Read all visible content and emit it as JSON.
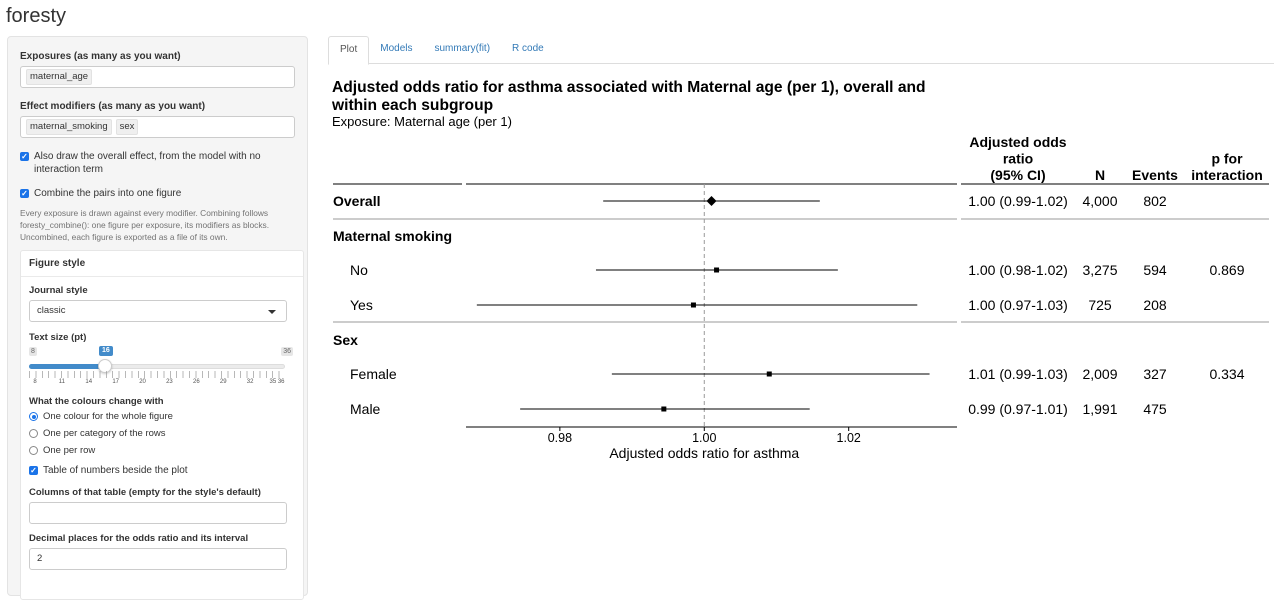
{
  "app_title": "foresty",
  "sidebar": {
    "exposures_label": "Exposures (as many as you want)",
    "exposures": [
      "maternal_age"
    ],
    "modifiers_label": "Effect modifiers (as many as you want)",
    "modifiers": [
      "maternal_smoking",
      "sex"
    ],
    "overall_checkbox": "Also draw the overall effect, from the model with no interaction term",
    "combine_checkbox": "Combine the pairs into one figure",
    "help_text": "Every exposure is drawn against every modifier. Combining follows foresty_combine(): one figure per exposure, its modifiers as blocks. Uncombined, each figure is exported as a file of its own.",
    "figure_style": {
      "heading": "Figure style",
      "journal_label": "Journal style",
      "journal_value": "classic",
      "text_size_label": "Text size (pt)",
      "slider_min": "8",
      "slider_max": "36",
      "slider_value": "16",
      "slider_ticks": [
        "8",
        "11",
        "14",
        "17",
        "20",
        "23",
        "26",
        "29",
        "32",
        "35 36"
      ],
      "colours_label": "What the colours change with",
      "colour_options": [
        "One colour for the whole figure",
        "One per category of the rows",
        "One per row"
      ],
      "colour_selected": 0,
      "table_checkbox": "Table of numbers beside the plot",
      "columns_label": "Columns of that table (empty for the style's default)",
      "columns_value": "",
      "decimals_label": "Decimal places for the odds ratio and its interval",
      "decimals_value": "2"
    }
  },
  "tabs": [
    {
      "label": "Plot",
      "active": true
    },
    {
      "label": "Models",
      "active": false
    },
    {
      "label": "summary(fit)",
      "active": false
    },
    {
      "label": "R code",
      "active": false
    }
  ],
  "plot": {
    "title": "Adjusted odds ratio for asthma associated with Maternal age (per 1), overall and within each subgroup",
    "subtitle": "Exposure: Maternal age (per 1)"
  },
  "chart_data": {
    "type": "forest",
    "xlabel": "Adjusted odds ratio for asthma",
    "xlim": [
      0.967,
      1.035
    ],
    "xticks": [
      0.98,
      1.0,
      1.02
    ],
    "xtick_labels": [
      "0.98",
      "1.00",
      "1.02"
    ],
    "reference_line": 1.0,
    "columns": [
      {
        "key": "or_ci",
        "header": [
          "Adjusted odds",
          "ratio",
          "(95% CI)"
        ]
      },
      {
        "key": "n",
        "header": [
          "N"
        ]
      },
      {
        "key": "events",
        "header": [
          "Events"
        ]
      },
      {
        "key": "p",
        "header": [
          "p for",
          "interaction"
        ]
      }
    ],
    "rows": [
      {
        "label": "Overall",
        "kind": "overall",
        "est": 1.001,
        "lo": 0.986,
        "hi": 1.016,
        "or_ci": "1.00 (0.99-1.02)",
        "n": "4,000",
        "events": "802",
        "p": ""
      },
      {
        "label": "Maternal smoking",
        "kind": "header"
      },
      {
        "label": "No",
        "kind": "sub",
        "est": 1.0017,
        "lo": 0.985,
        "hi": 1.0185,
        "or_ci": "1.00 (0.98-1.02)",
        "n": "3,275",
        "events": "594",
        "p": "0.869"
      },
      {
        "label": "Yes",
        "kind": "sub",
        "est": 0.9985,
        "lo": 0.9685,
        "hi": 1.0295,
        "or_ci": "1.00 (0.97-1.03)",
        "n": "725",
        "events": "208",
        "p": ""
      },
      {
        "label": "Sex",
        "kind": "header"
      },
      {
        "label": "Female",
        "kind": "sub",
        "est": 1.009,
        "lo": 0.9872,
        "hi": 1.0312,
        "or_ci": "1.01 (0.99-1.03)",
        "n": "2,009",
        "events": "327",
        "p": "0.334"
      },
      {
        "label": "Male",
        "kind": "sub",
        "est": 0.9944,
        "lo": 0.9745,
        "hi": 1.0146,
        "or_ci": "0.99 (0.97-1.01)",
        "n": "1,991",
        "events": "475",
        "p": ""
      }
    ]
  }
}
